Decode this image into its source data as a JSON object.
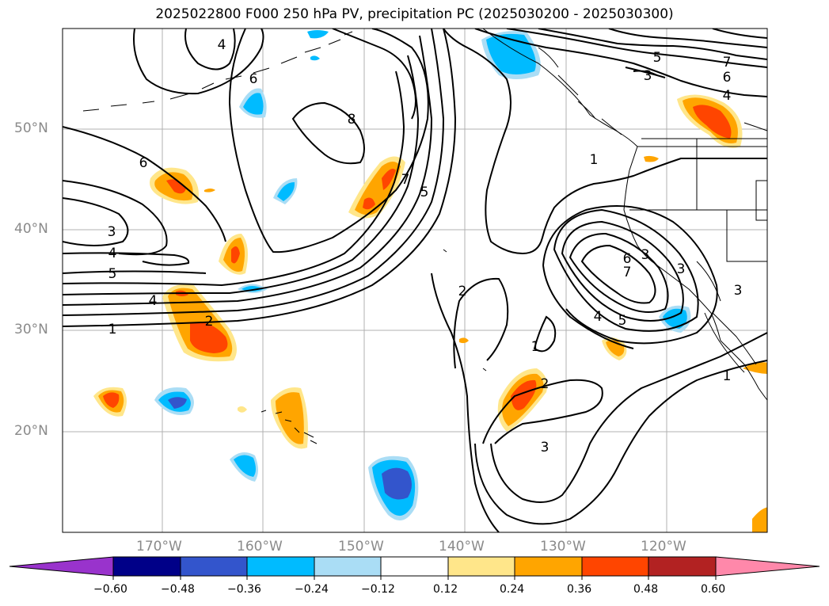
{
  "title": "2025022800 F000 250 hPa PV, precipitation PC (2025030200 - 2025030300)",
  "latitude_labels": [
    "50°N",
    "40°N",
    "30°N",
    "20°N"
  ],
  "longitude_labels": [
    "170°W",
    "160°W",
    "150°W",
    "140°W",
    "130°W",
    "120°W"
  ],
  "contour_labels": [
    "4",
    "6",
    "8",
    "6",
    "7",
    "5",
    "3",
    "4",
    "5",
    "4",
    "2",
    "1",
    "7",
    "5",
    "3",
    "6",
    "4",
    "1",
    "6",
    "7",
    "5",
    "4",
    "3",
    "3",
    "3",
    "2",
    "1",
    "2",
    "3",
    "1"
  ],
  "colorbar": {
    "ticks": [
      "−0.60",
      "−0.48",
      "−0.36",
      "−0.24",
      "−0.12",
      "0.12",
      "0.24",
      "0.36",
      "0.48",
      "0.60"
    ],
    "colors": [
      "#9933cc",
      "#000088",
      "#3355cc",
      "#00bbff",
      "#aaddf5",
      "#ffffff",
      "#ffe68a",
      "#ffa500",
      "#ff4500",
      "#b22222",
      "#ff88aa"
    ]
  }
}
